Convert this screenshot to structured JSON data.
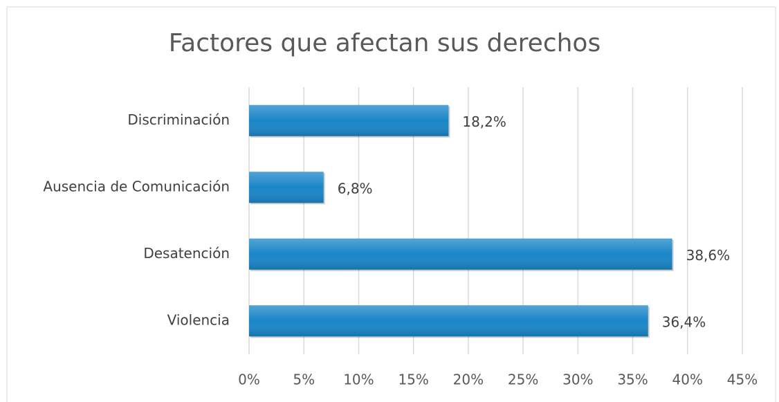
{
  "chart_data": {
    "type": "barh",
    "title": "Factores que afectan sus derechos",
    "categories": [
      "Discriminación",
      "Ausencia de Comunicación",
      "Desatención",
      "Violencia"
    ],
    "values": [
      18.2,
      6.8,
      38.6,
      36.4
    ],
    "value_labels": [
      "18,2%",
      "6,8%",
      "38,6%",
      "36,4%"
    ],
    "color": "#1a86c8",
    "xlim": [
      0,
      45
    ],
    "xticks": [
      {
        "value": 0,
        "label": "0%"
      },
      {
        "value": 5,
        "label": "5%"
      },
      {
        "value": 10,
        "label": "10%"
      },
      {
        "value": 15,
        "label": "15%"
      },
      {
        "value": 20,
        "label": "20%"
      },
      {
        "value": 25,
        "label": "25%"
      },
      {
        "value": 30,
        "label": "30%"
      },
      {
        "value": 35,
        "label": "35%"
      },
      {
        "value": 40,
        "label": "40%"
      },
      {
        "value": 45,
        "label": "45%"
      }
    ],
    "grid": true
  }
}
